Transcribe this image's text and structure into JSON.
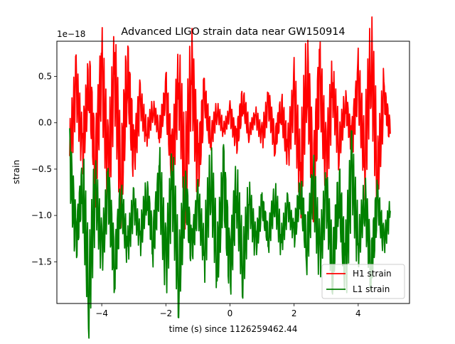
{
  "chart_data": {
    "type": "line",
    "title": "Advanced LIGO strain data near GW150914",
    "xlabel": "time (s) since 1126259462.44",
    "ylabel": "strain",
    "offset_label": "1e−18",
    "xlim": [
      -5.4,
      5.6
    ],
    "ylim": [
      -1.95,
      0.88
    ],
    "xticks": [
      -4,
      -2,
      0,
      2,
      4
    ],
    "xtick_labels": [
      "−4",
      "−2",
      "0",
      "2",
      "4"
    ],
    "yticks": [
      0.5,
      0.0,
      -0.5,
      -1.0,
      -1.5
    ],
    "ytick_labels": [
      "0.5",
      "0.0",
      "−0.5",
      "−1.0",
      "−1.5"
    ],
    "grid": false,
    "legend_position": "lower-right",
    "series": [
      {
        "name": "H1 strain",
        "color": "#ff0000",
        "x": [
          -5.0,
          -4.8,
          -4.6,
          -4.4,
          -4.2,
          -4.0,
          -3.8,
          -3.6,
          -3.4,
          -3.2,
          -3.0,
          -2.8,
          -2.6,
          -2.4,
          -2.2,
          -2.0,
          -1.8,
          -1.6,
          -1.4,
          -1.2,
          -1.0,
          -0.8,
          -0.6,
          -0.4,
          -0.2,
          0.0,
          0.2,
          0.4,
          0.6,
          0.8,
          1.0,
          1.2,
          1.4,
          1.6,
          1.8,
          2.0,
          2.2,
          2.4,
          2.6,
          2.8,
          3.0,
          3.2,
          3.4,
          3.6,
          3.8,
          4.0,
          4.2,
          4.4,
          4.6,
          4.8,
          5.0
        ],
        "y": [
          -0.36,
          0.42,
          -0.3,
          0.5,
          -0.48,
          0.6,
          -0.56,
          0.58,
          -0.66,
          0.61,
          -0.38,
          0.25,
          -0.14,
          0.16,
          -0.1,
          0.32,
          -0.46,
          0.48,
          -0.6,
          0.63,
          -0.52,
          0.3,
          -0.18,
          0.14,
          -0.08,
          0.11,
          -0.21,
          0.26,
          -0.1,
          0.08,
          -0.16,
          0.22,
          -0.22,
          0.18,
          -0.32,
          0.3,
          -0.6,
          0.6,
          -0.66,
          0.53,
          -0.48,
          0.4,
          -0.26,
          0.22,
          -0.22,
          0.45,
          -0.4,
          0.75,
          -0.55,
          0.3,
          -0.12
        ]
      },
      {
        "name": "L1 strain",
        "color": "#008000",
        "x": [
          -5.0,
          -4.8,
          -4.6,
          -4.4,
          -4.2,
          -4.0,
          -3.8,
          -3.6,
          -3.4,
          -3.2,
          -3.0,
          -2.8,
          -2.6,
          -2.4,
          -2.2,
          -2.0,
          -1.8,
          -1.6,
          -1.4,
          -1.2,
          -1.0,
          -0.8,
          -0.6,
          -0.4,
          -0.2,
          0.0,
          0.2,
          0.4,
          0.6,
          0.8,
          1.0,
          1.2,
          1.4,
          1.6,
          1.8,
          2.0,
          2.2,
          2.4,
          2.6,
          2.8,
          3.0,
          3.2,
          3.4,
          3.6,
          3.8,
          4.0,
          4.2,
          4.4,
          4.6,
          4.8,
          5.0
        ],
        "y": [
          -0.4,
          -1.3,
          -0.62,
          -1.82,
          -0.68,
          -1.4,
          -0.72,
          -1.58,
          -0.82,
          -1.36,
          -0.88,
          -1.26,
          -0.75,
          -1.3,
          -0.6,
          -1.55,
          -0.62,
          -1.7,
          -0.7,
          -1.38,
          -0.85,
          -1.4,
          -0.55,
          -1.5,
          -0.57,
          -1.62,
          -0.7,
          -1.56,
          -0.82,
          -1.32,
          -0.88,
          -1.25,
          -0.8,
          -1.28,
          -0.9,
          -1.2,
          -0.72,
          -1.35,
          -0.65,
          -1.45,
          -0.75,
          -1.55,
          -0.7,
          -1.6,
          -0.48,
          -1.35,
          -0.8,
          -1.58,
          -0.82,
          -1.3,
          -0.95
        ]
      }
    ]
  }
}
